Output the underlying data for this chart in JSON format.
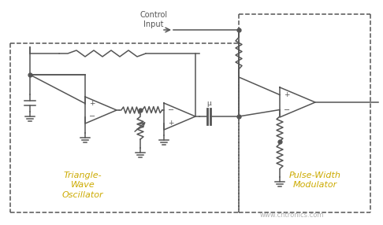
{
  "bg_color": "#ffffff",
  "lc": "#555555",
  "label_color": "#ccaa00",
  "watermark": "www.cntronics.com",
  "watermark_color": "#aaaaaa",
  "label1": "Triangle-\nWave\nOscillator",
  "label2": "Pulse-Width\nModulator",
  "control_label": "Control\nInput",
  "fig_width": 4.86,
  "fig_height": 2.86,
  "dpi": 100
}
